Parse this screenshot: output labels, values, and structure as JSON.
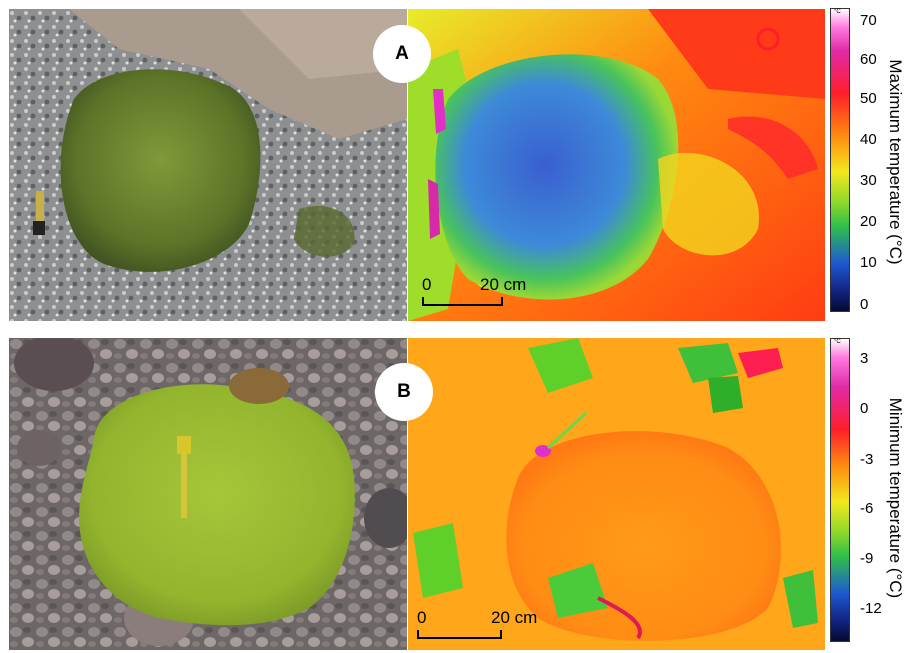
{
  "panels": {
    "a": {
      "label": "A",
      "scale": {
        "zero": "0",
        "length": "20 cm"
      }
    },
    "b": {
      "label": "B",
      "scale": {
        "zero": "0",
        "length": "20 cm"
      }
    }
  },
  "colorbars": {
    "top": {
      "unit": "°C",
      "ticks": [
        "70",
        "60",
        "50",
        "40",
        "30",
        "20",
        "10",
        "0"
      ],
      "title": "Maximum temperature (°C)"
    },
    "bottom": {
      "unit": "°C",
      "ticks": [
        "3",
        "0",
        "-3",
        "-6",
        "-9",
        "-12"
      ],
      "title": "Minimum temperature (°C)"
    }
  },
  "colors": {
    "moss_dry": "#7a8b32",
    "moss_wet": "#9fbf2e",
    "thermal_hot": "#ff4a10",
    "thermal_warm": "#ffb000",
    "thermal_mid": "#5fd025",
    "thermal_cool": "#2f56c8"
  }
}
